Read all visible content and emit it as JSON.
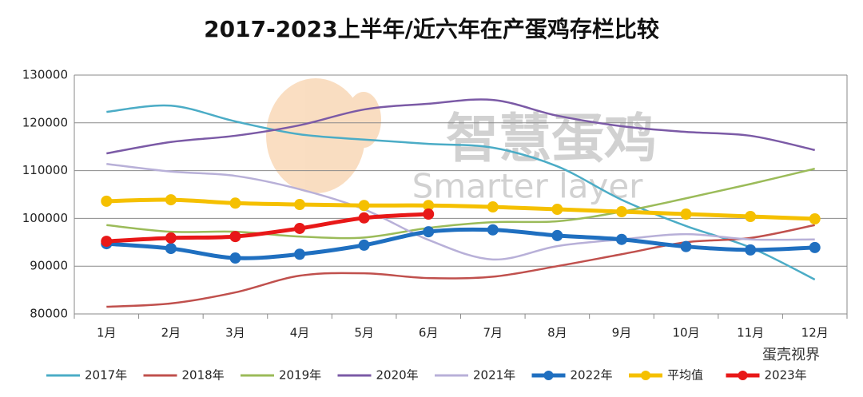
{
  "chart_data": {
    "type": "line",
    "title": "2017-2023上半年/近六年在产蛋鸡存栏比较",
    "categories": [
      "1月",
      "2月",
      "3月",
      "4月",
      "5月",
      "6月",
      "7月",
      "8月",
      "9月",
      "10月",
      "11月",
      "12月"
    ],
    "ylim": [
      80000,
      130000
    ],
    "yticks": [
      80000,
      90000,
      100000,
      110000,
      120000,
      130000
    ],
    "grid": true,
    "legend": "bottom",
    "annotations": [
      "智慧蛋鸡",
      "Smarter layer",
      "蛋壳视界"
    ],
    "series": [
      {
        "name": "2017年",
        "color": "#4bacc6",
        "values": [
          122300,
          123600,
          120300,
          117600,
          116500,
          115600,
          114800,
          110900,
          103900,
          98400,
          93900,
          87200
        ]
      },
      {
        "name": "2018年",
        "color": "#c0504d",
        "values": [
          81500,
          82200,
          84500,
          88000,
          88500,
          87500,
          87800,
          90000,
          92500,
          95000,
          95900,
          98600
        ]
      },
      {
        "name": "2019年",
        "color": "#9bbb59",
        "values": [
          98600,
          97200,
          97200,
          96200,
          96000,
          98000,
          99200,
          99400,
          101400,
          104200,
          107200,
          110400
        ]
      },
      {
        "name": "2020年",
        "color": "#7b5aa6",
        "values": [
          113600,
          116000,
          117300,
          119500,
          122800,
          124000,
          124800,
          121500,
          119300,
          118100,
          117300,
          114300
        ]
      },
      {
        "name": "2021年",
        "color": "#b8b0d8",
        "values": [
          111400,
          109800,
          108900,
          106100,
          101900,
          95500,
          91400,
          94200,
          95600,
          96700,
          95600,
          95600
        ]
      },
      {
        "name": "2022年",
        "color": "#1f6fc0",
        "marker": true,
        "values": [
          94700,
          93700,
          91700,
          92500,
          94400,
          97200,
          97600,
          96400,
          95600,
          94100,
          93400,
          93900
        ]
      },
      {
        "name": "平均值",
        "color": "#f5c000",
        "marker": true,
        "values": [
          103600,
          103900,
          103200,
          102900,
          102700,
          102700,
          102400,
          101900,
          101400,
          100900,
          100400,
          99900
        ]
      },
      {
        "name": "2023年",
        "color": "#e81818",
        "marker": true,
        "values": [
          95200,
          95900,
          96200,
          97900,
          100100,
          100900,
          null,
          null,
          null,
          null,
          null,
          null
        ]
      }
    ]
  }
}
